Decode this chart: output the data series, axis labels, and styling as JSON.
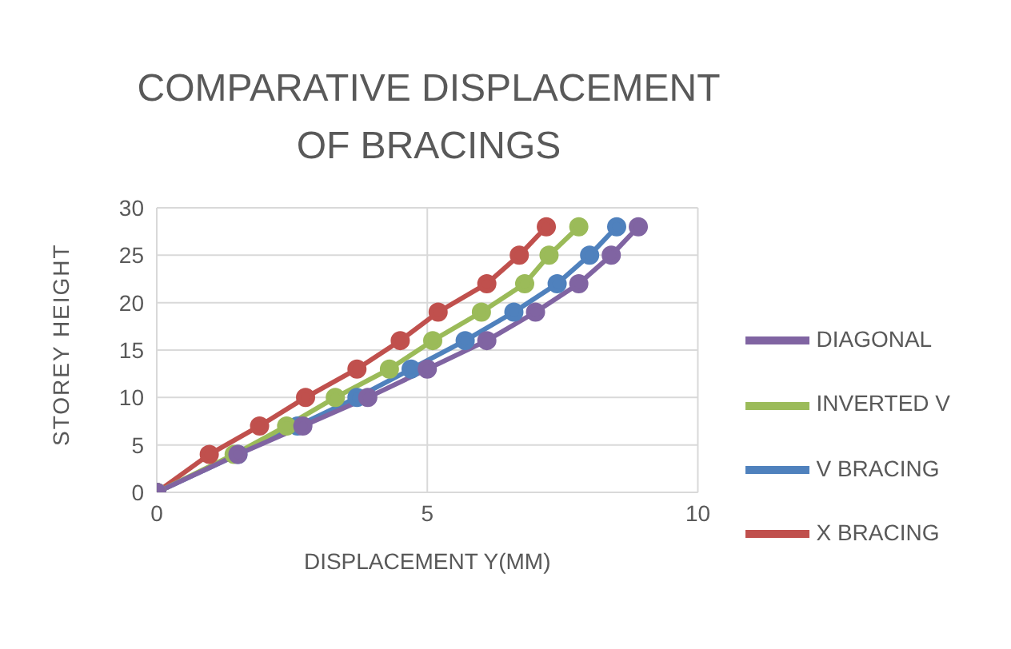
{
  "chart_data": {
    "type": "line",
    "title": "COMPARATIVE DISPLACEMENT OF BRACINGS",
    "xlabel": "DISPLACEMENT   Y(MM)",
    "ylabel": "STOREY HEIGHT",
    "xlim": [
      0,
      10
    ],
    "xticks": [
      0,
      5,
      10
    ],
    "ylim": [
      0,
      30
    ],
    "yticks": [
      0,
      5,
      10,
      15,
      20,
      25,
      30
    ],
    "grid": true,
    "legend": "right",
    "marker": "circle",
    "line_style": "solid",
    "series": [
      {
        "name": "X BRACING",
        "color": "#c0504d",
        "x": [
          0,
          0.97,
          1.9,
          2.75,
          3.7,
          4.5,
          5.2,
          6.1,
          6.7,
          7.2
        ],
        "values": [
          0,
          4,
          7,
          10,
          13,
          16,
          19,
          22,
          25,
          28
        ]
      },
      {
        "name": "V BRACING",
        "color": "#4f81bd",
        "x": [
          0,
          1.5,
          2.6,
          3.7,
          4.7,
          5.7,
          6.6,
          7.4,
          8.0,
          8.5
        ],
        "values": [
          0,
          4,
          7,
          10,
          13,
          16,
          19,
          22,
          25,
          28
        ]
      },
      {
        "name": "INVERTED V",
        "color": "#9bbb59",
        "x": [
          0,
          1.43,
          2.4,
          3.3,
          4.3,
          5.1,
          6.0,
          6.8,
          7.25,
          7.8
        ],
        "values": [
          0,
          4,
          7,
          10,
          13,
          16,
          19,
          22,
          25,
          28
        ]
      },
      {
        "name": "DIAGONAL",
        "color": "#8064a2",
        "x": [
          0,
          1.5,
          2.7,
          3.9,
          5.0,
          6.1,
          7.0,
          7.8,
          8.4,
          8.9
        ],
        "values": [
          0,
          4,
          7,
          10,
          13,
          16,
          19,
          22,
          25,
          28
        ]
      }
    ]
  }
}
